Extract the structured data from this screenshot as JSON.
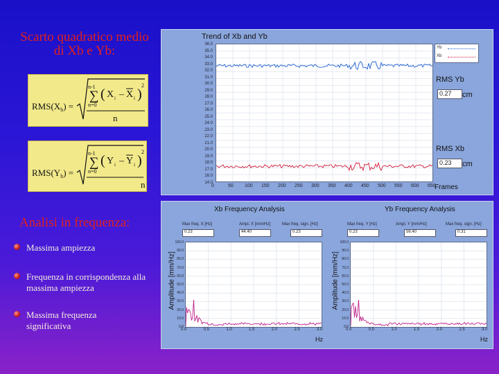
{
  "slide": {
    "heading": "Scarto quadratico medio di Xb e Yb:",
    "analysis_heading": "Analisi in frequenza:",
    "bullets": [
      "Massima ampiezza",
      "Frequenza in corrispondenza alla massima ampiezza",
      "Massima frequenza significativa"
    ]
  },
  "formula_x": {
    "lhs": "RMS(X",
    "sub": "b",
    "rhs": ") =",
    "upper": "n-1",
    "lower": "n=0",
    "term_a": "X",
    "term_b": "X",
    "idx": "i",
    "power": "2",
    "den": "n"
  },
  "formula_y": {
    "lhs": "RMS(Y",
    "sub": "b",
    "rhs": ") =",
    "upper": "n-1",
    "lower": "n=0",
    "term_a": "Y",
    "term_b": "Y",
    "idx": "i",
    "power": "2",
    "den": "n"
  },
  "trend": {
    "title": "Trend of  Xb and Yb",
    "y_ticks": [
      "36.0",
      "35.0",
      "34.0",
      "33.0",
      "32.0",
      "31.0",
      "30.0",
      "29.0",
      "28.0",
      "27.0",
      "26.0",
      "25.0",
      "24.0",
      "23.0",
      "22.0",
      "21.0",
      "20.0",
      "19.0",
      "18.0",
      "17.0",
      "16.0",
      "14.0"
    ],
    "x_ticks": [
      "0",
      "50",
      "100",
      "150",
      "200",
      "250",
      "300",
      "350",
      "400",
      "450",
      "500",
      "550",
      "600",
      "650"
    ],
    "x_unit": "Frames",
    "legend": [
      "Yb",
      "Xb"
    ],
    "rms_yb_label": "RMS Yb",
    "rms_yb_value": "0.27",
    "rms_xb_label": "RMS Xb",
    "rms_xb_value": "0.23",
    "unit": "cm",
    "colors": {
      "yb": "#1e5fd0",
      "xb": "#d01a3a"
    }
  },
  "freq": {
    "xb_title": "Xb Frequency Analysis",
    "yb_title": "Yb Frequency Analysis",
    "ylabel": "Amplitude [mm/Hz]",
    "xunit": "Hz",
    "xb_fields": [
      {
        "label": "Max freq. X [Hz]",
        "value": "0.23"
      },
      {
        "label": "Ampl. X [mm/Hz]",
        "value": "44.40"
      },
      {
        "label": "Max freq. sign. [Hz]",
        "value": "0.23"
      }
    ],
    "yb_fields": [
      {
        "label": "Max freq. Y [Hz]",
        "value": "0.23"
      },
      {
        "label": "Ampl. Y [mm/Hz]",
        "value": "56.40"
      },
      {
        "label": "Max freq. sign. [Hz]",
        "value": "0.31"
      }
    ],
    "xb_yticks": [
      "100.0",
      "90.0",
      "80.0",
      "70.0",
      "60.0",
      "50.0",
      "40.0",
      "30.0",
      "20.0",
      "10.0",
      "0.0"
    ],
    "yb_yticks": [
      "100.0",
      "90.0",
      "80.0",
      "70.0",
      "60.0",
      "50.0",
      "40.0",
      "30.0",
      "20.0",
      "10.0",
      "0.0"
    ],
    "xb_xticks": [
      "0.0",
      "0.5",
      "1.0",
      "1.5",
      "2.0",
      "2.5",
      "3.0"
    ],
    "yb_xticks": [
      "0.0",
      "0.5",
      "1.0",
      "1.5",
      "2.0",
      "2.5",
      "3.0"
    ]
  }
}
